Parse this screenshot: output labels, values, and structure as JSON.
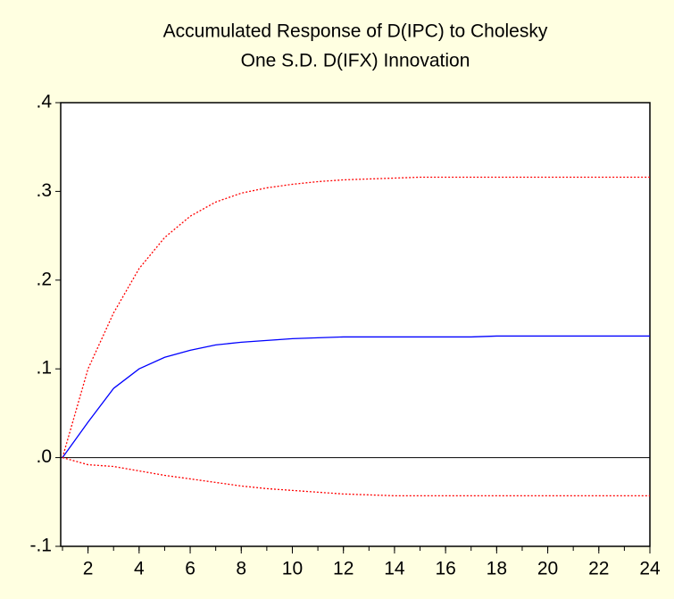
{
  "chart_data": {
    "type": "line",
    "title": [
      "Accumulated Response of D(IPC) to Cholesky",
      "One S.D. D(IFX) Innovation"
    ],
    "x": [
      1,
      2,
      3,
      4,
      5,
      6,
      7,
      8,
      9,
      10,
      11,
      12,
      13,
      14,
      15,
      16,
      17,
      18,
      19,
      20,
      21,
      22,
      23,
      24
    ],
    "series": [
      {
        "color": "#ff0000",
        "dash": "2,2",
        "values": [
          0,
          0.1,
          0.163,
          0.213,
          0.248,
          0.272,
          0.288,
          0.298,
          0.304,
          0.308,
          0.311,
          0.313,
          0.314,
          0.315,
          0.316,
          0.316,
          0.316,
          0.316,
          0.316,
          0.316,
          0.316,
          0.316,
          0.316,
          0.316
        ]
      },
      {
        "color": "#0000ff",
        "dash": "none",
        "values": [
          0,
          0.04,
          0.078,
          0.1,
          0.113,
          0.121,
          0.127,
          0.13,
          0.132,
          0.134,
          0.135,
          0.136,
          0.136,
          0.136,
          0.136,
          0.136,
          0.136,
          0.137,
          0.137,
          0.137,
          0.137,
          0.137,
          0.137,
          0.137
        ]
      },
      {
        "color": "#ff0000",
        "dash": "2,2",
        "values": [
          0,
          -0.008,
          -0.01,
          -0.015,
          -0.02,
          -0.024,
          -0.028,
          -0.032,
          -0.035,
          -0.037,
          -0.039,
          -0.041,
          -0.042,
          -0.043,
          -0.043,
          -0.043,
          -0.043,
          -0.043,
          -0.043,
          -0.043,
          -0.043,
          -0.043,
          -0.043,
          -0.043
        ]
      }
    ],
    "xlim": [
      1,
      24
    ],
    "xticks": [
      2,
      4,
      6,
      8,
      10,
      12,
      14,
      16,
      18,
      20,
      22,
      24
    ],
    "ylim": [
      -0.1,
      0.4
    ],
    "yticks": [
      {
        "value": -0.1,
        "label": "-.1"
      },
      {
        "value": 0,
        "label": ".0"
      },
      {
        "value": 0.1,
        "label": ".1"
      },
      {
        "value": 0.2,
        "label": ".2"
      },
      {
        "value": 0.3,
        "label": ".3"
      },
      {
        "value": 0.4,
        "label": ".4"
      }
    ],
    "zero_line": true
  }
}
